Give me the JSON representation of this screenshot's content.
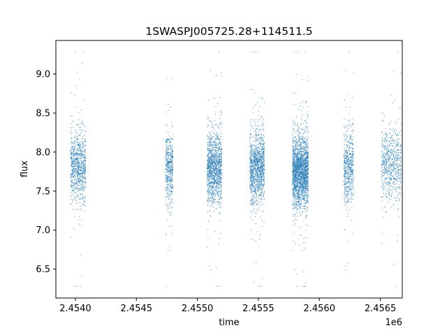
{
  "chart_data": {
    "type": "scatter",
    "title": "1SWASPJ005725.28+114511.5",
    "xlabel": "time",
    "ylabel": "flux",
    "x_offset_label": "1e6",
    "x_tick_labels": [
      "2.4540",
      "2.4545",
      "2.4550",
      "2.4555",
      "2.4560",
      "2.4565"
    ],
    "y_tick_labels": [
      "6.5",
      "7.0",
      "7.5",
      "8.0",
      "8.5",
      "9.0"
    ],
    "xlim": [
      2453840,
      2456680
    ],
    "ylim": [
      6.13,
      9.43
    ],
    "grid": false,
    "legend": "none",
    "series_color": "#1f77b4",
    "observing_seasons": [
      {
        "start": 2453960,
        "end": 2454085,
        "median_flux": 7.8,
        "count": 900
      },
      {
        "start": 2454740,
        "end": 2454800,
        "median_flux": 7.8,
        "count": 500
      },
      {
        "start": 2455080,
        "end": 2455200,
        "median_flux": 7.8,
        "count": 1300
      },
      {
        "start": 2455430,
        "end": 2455550,
        "median_flux": 7.8,
        "count": 1300
      },
      {
        "start": 2455780,
        "end": 2455910,
        "median_flux": 7.75,
        "count": 2200
      },
      {
        "start": 2456200,
        "end": 2456280,
        "median_flux": 7.8,
        "count": 600
      },
      {
        "start": 2456510,
        "end": 2456670,
        "median_flux": 7.85,
        "count": 700
      }
    ]
  }
}
